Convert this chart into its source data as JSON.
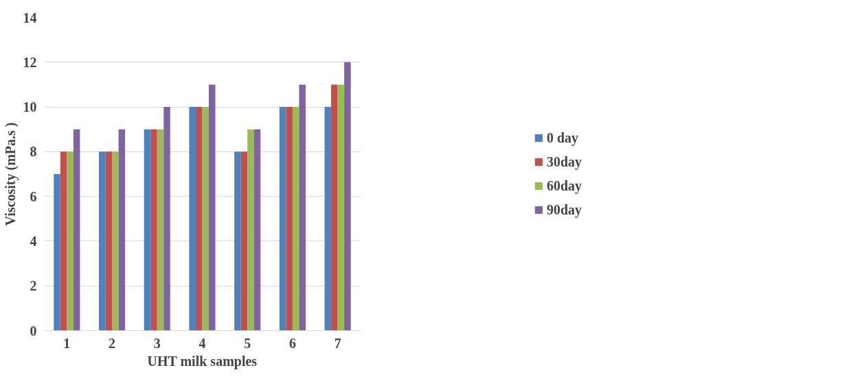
{
  "chart_data": {
    "type": "bar",
    "xlabel": "UHT milk samples",
    "ylabel": "Viscosity (mPa.s )",
    "categories": [
      "1",
      "2",
      "3",
      "4",
      "5",
      "6",
      "7"
    ],
    "series": [
      {
        "name": "0 day",
        "color": "#4f81bd",
        "values": [
          7,
          8,
          9,
          10,
          8,
          10,
          10
        ]
      },
      {
        "name": "30day",
        "color": "#c0504d",
        "values": [
          8,
          8,
          9,
          10,
          8,
          10,
          11
        ]
      },
      {
        "name": "60day",
        "color": "#9bbb59",
        "values": [
          8,
          8,
          9,
          10,
          9,
          10,
          11
        ]
      },
      {
        "name": "90day",
        "color": "#8064a2",
        "values": [
          9,
          9,
          10,
          11,
          9,
          11,
          12
        ]
      }
    ],
    "ylim": [
      0,
      14
    ],
    "yticks": [
      0,
      2,
      4,
      6,
      8,
      10,
      12,
      14
    ],
    "grid": "y",
    "legend": "right"
  }
}
